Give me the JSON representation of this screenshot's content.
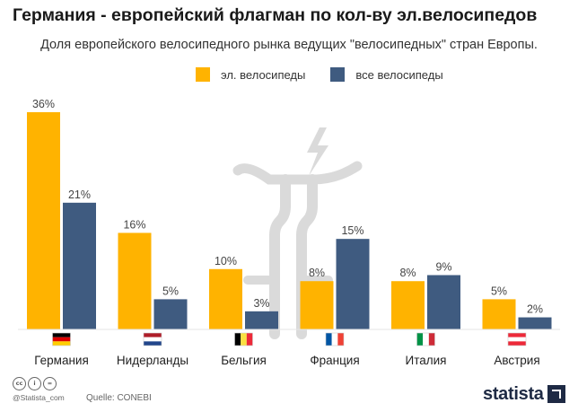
{
  "header": {
    "title": "Германия - европейский флагман по кол-ву эл.велосипедов",
    "subtitle": "Доля европейского велосипедного рынка ведущих \"велосипедных\" стран Европы."
  },
  "colors": {
    "ebike": "#FFB300",
    "all": "#3F5B80",
    "watermark": "#dadada"
  },
  "chart_data": {
    "type": "bar",
    "categories": [
      "Германия",
      "Нидерланды",
      "Бельгия",
      "Франция",
      "Италия",
      "Австрия"
    ],
    "series": [
      {
        "name": "эл. велосипеды",
        "values": [
          36,
          16,
          10,
          8,
          8,
          5
        ],
        "labels": [
          "36%",
          "16%",
          "10%",
          "8%",
          "8%",
          "5%"
        ]
      },
      {
        "name": "все велосипеды",
        "values": [
          21,
          5,
          3,
          15,
          9,
          2
        ],
        "labels": [
          "21%",
          "5%",
          "3%",
          "15%",
          "9%",
          "2%"
        ]
      }
    ],
    "flags": [
      "flag-germany",
      "flag-netherlands",
      "flag-belgium",
      "flag-france",
      "flag-italy",
      "flag-austria"
    ],
    "ylim": [
      0,
      36
    ],
    "grid": false,
    "legend": "top-center"
  },
  "footer": {
    "handle": "@Statista_com",
    "source": "Quelle: CONEBI",
    "brand": "statista"
  }
}
